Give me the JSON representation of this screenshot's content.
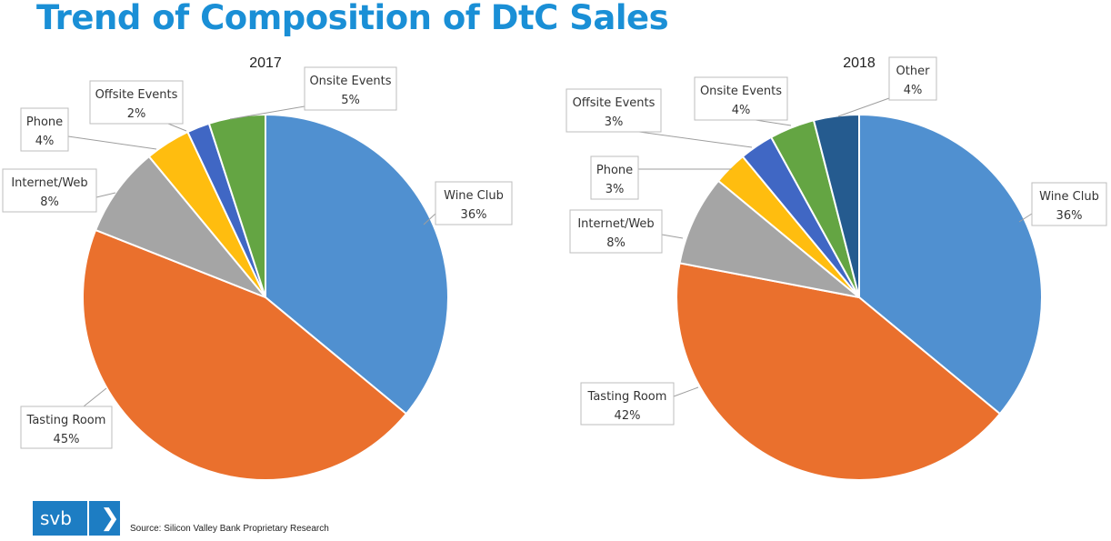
{
  "page": {
    "title": "Trend of Composition of DtC Sales",
    "source": "Source: Silicon Valley Bank Proprietary Research",
    "logo": {
      "text": "svb",
      "arrow": "❯"
    }
  },
  "colors": {
    "title": "#1a8fd6",
    "Wine Club": "#5090d0",
    "Tasting Room": "#ea702d",
    "Internet/Web": "#a5a5a5",
    "Phone": "#ffbd0f",
    "Offsite Events": "#4067c4",
    "Onsite Events": "#64a543",
    "Other": "#255b8f"
  },
  "chart_data": [
    {
      "type": "pie",
      "title": "2017",
      "labels": [
        "Wine Club",
        "Tasting Room",
        "Internet/Web",
        "Phone",
        "Offsite Events",
        "Onsite Events"
      ],
      "values": [
        36,
        45,
        8,
        4,
        2,
        5
      ],
      "value_labels": [
        "36%",
        "45%",
        "8%",
        "4%",
        "2%",
        "5%"
      ],
      "start": "12 o'clock",
      "direction": "clockwise"
    },
    {
      "type": "pie",
      "title": "2018",
      "labels": [
        "Wine Club",
        "Tasting Room",
        "Internet/Web",
        "Phone",
        "Offsite Events",
        "Onsite Events",
        "Other"
      ],
      "values": [
        36,
        42,
        8,
        3,
        3,
        4,
        4
      ],
      "value_labels": [
        "36%",
        "42%",
        "8%",
        "3%",
        "3%",
        "4%",
        "4%"
      ],
      "start": "12 o'clock",
      "direction": "clockwise"
    }
  ]
}
